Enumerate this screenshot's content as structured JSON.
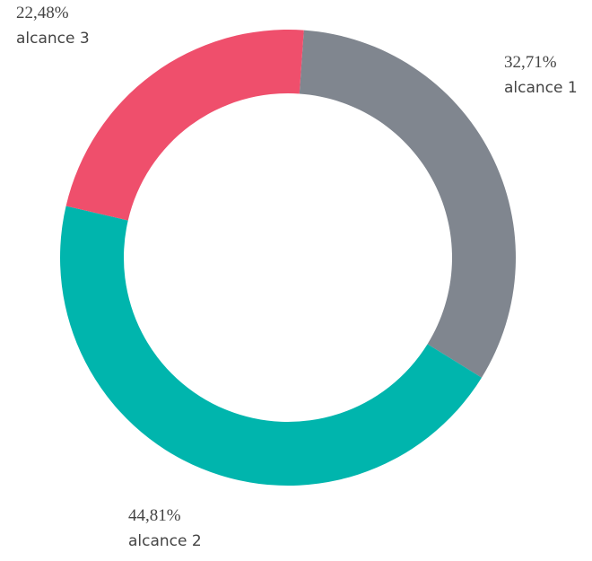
{
  "chart_data": {
    "type": "donut",
    "categories": [
      "alcance 1",
      "alcance 2",
      "alcance 3"
    ],
    "values": [
      32.71,
      44.81,
      22.48
    ],
    "value_labels": [
      "32,71%",
      "44,81%",
      "22,48%"
    ],
    "colors": [
      "#80868f",
      "#00b5ad",
      "#ef4f6c"
    ]
  }
}
